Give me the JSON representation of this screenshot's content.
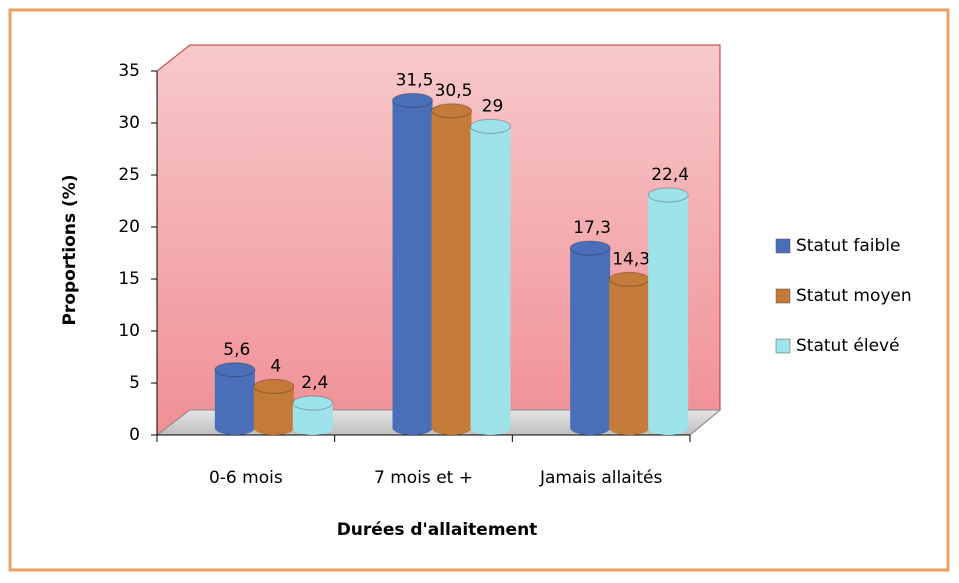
{
  "chart_data": {
    "type": "bar3d",
    "x_label": "Durées d'allaitement",
    "y_label": "Proportions (%)",
    "categories": [
      "0-6 mois",
      "7 mois et +",
      "Jamais allaités"
    ],
    "series": [
      {
        "name": "Statut faible",
        "color": "#4a6fb8",
        "values": [
          5.6,
          31.5,
          17.3
        ],
        "value_labels": [
          "5,6",
          "31,5",
          "17,3"
        ]
      },
      {
        "name": "Statut moyen",
        "color": "#c47a38",
        "values": [
          4,
          30.5,
          14.3
        ],
        "value_labels": [
          "4",
          "30,5",
          "14,3"
        ]
      },
      {
        "name": "Statut élevé",
        "color": "#9fe3ea",
        "values": [
          2.4,
          29,
          22.4
        ],
        "value_labels": [
          "2,4",
          "29",
          "22,4"
        ]
      }
    ],
    "ylim": [
      0,
      35
    ],
    "yticks": [
      0,
      5,
      10,
      15,
      20,
      25,
      30,
      35
    ],
    "legend": "right"
  }
}
